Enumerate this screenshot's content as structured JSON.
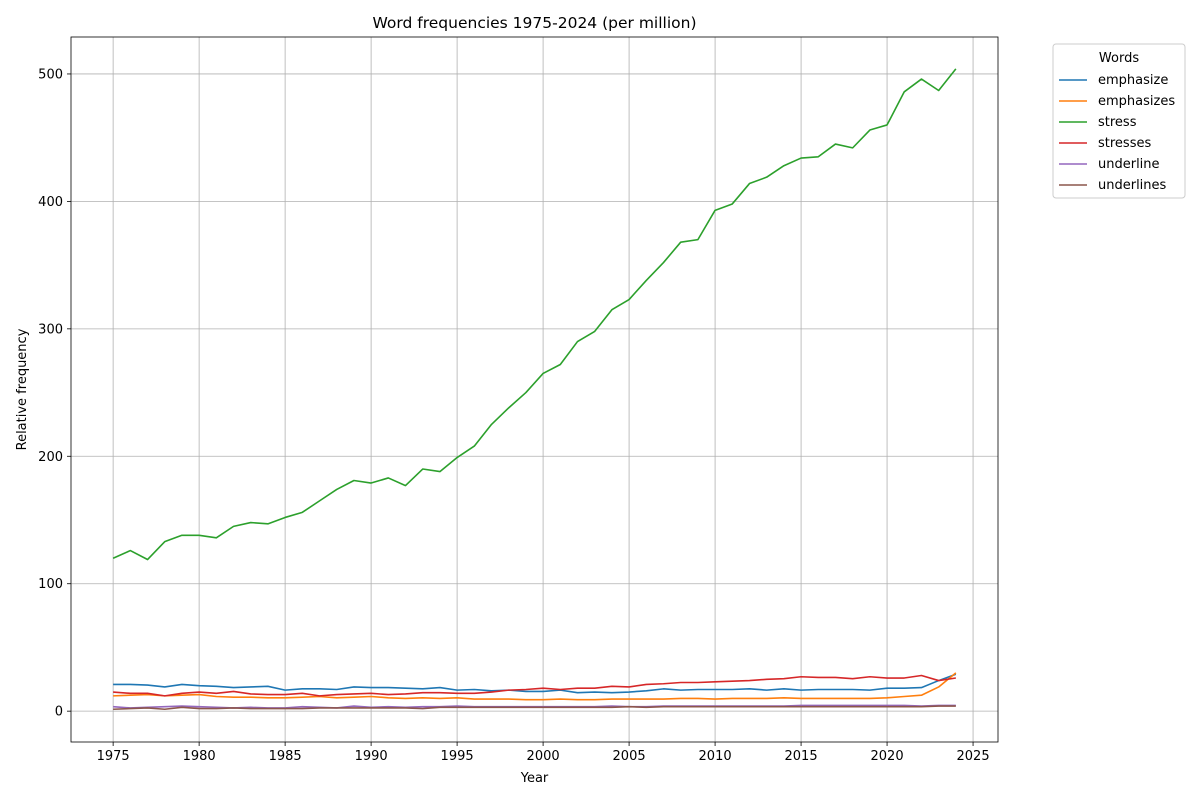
{
  "chart_data": {
    "type": "line",
    "title": "Word frequencies 1975-2024 (per million)",
    "xlabel": "Year",
    "ylabel": "Relative frequency",
    "xlim": [
      1972.55,
      2026.45
    ],
    "ylim": [
      -24.2,
      529.0
    ],
    "xticks": [
      1975,
      1980,
      1985,
      1990,
      1995,
      2000,
      2005,
      2010,
      2015,
      2020,
      2025
    ],
    "yticks": [
      0,
      100,
      200,
      300,
      400,
      500
    ],
    "grid": true,
    "legend": {
      "title": "Words",
      "placement": "outside-top-right"
    },
    "x": [
      1975,
      1976,
      1977,
      1978,
      1979,
      1980,
      1981,
      1982,
      1983,
      1984,
      1985,
      1986,
      1987,
      1988,
      1989,
      1990,
      1991,
      1992,
      1993,
      1994,
      1995,
      1996,
      1997,
      1998,
      1999,
      2000,
      2001,
      2002,
      2003,
      2004,
      2005,
      2006,
      2007,
      2008,
      2009,
      2010,
      2011,
      2012,
      2013,
      2014,
      2015,
      2016,
      2017,
      2018,
      2019,
      2020,
      2021,
      2022,
      2023,
      2024
    ],
    "series": [
      {
        "name": "emphasize",
        "color": "#1f77b4",
        "values": [
          21,
          21,
          20.5,
          19,
          21,
          20,
          19.5,
          18.5,
          19,
          19.5,
          16.5,
          17.5,
          17.5,
          17,
          19,
          18.5,
          18.5,
          18,
          17.5,
          18.5,
          16.5,
          17,
          16,
          16.5,
          15.5,
          15.5,
          16.5,
          14.5,
          15,
          14.5,
          15,
          16,
          17.5,
          16.5,
          17,
          17,
          17,
          17.5,
          16.5,
          17.5,
          16.5,
          17,
          17,
          17,
          16.5,
          18,
          18,
          18.5,
          24,
          29
        ]
      },
      {
        "name": "emphasizes",
        "color": "#ff7f0e",
        "values": [
          12,
          12.5,
          13,
          12,
          12.5,
          13,
          11.5,
          11,
          11,
          10.5,
          10.5,
          11,
          11.5,
          10.5,
          11,
          11.5,
          10.5,
          10,
          10.5,
          10,
          10.5,
          9.5,
          9.5,
          9.5,
          9,
          9,
          9.5,
          9,
          9,
          9.5,
          9.5,
          9.5,
          9.5,
          10,
          10,
          9.5,
          10,
          10,
          10,
          10.5,
          10,
          10,
          10,
          10,
          10,
          10.5,
          11.5,
          12.5,
          19,
          30
        ]
      },
      {
        "name": "stress",
        "color": "#2ca02c",
        "values": [
          120,
          126,
          119,
          133,
          138,
          138,
          136,
          145,
          148,
          147,
          152,
          156,
          165,
          174,
          181,
          179,
          183,
          177,
          190,
          188,
          199,
          208,
          225,
          238,
          250,
          265,
          272,
          290,
          298,
          315,
          323,
          338,
          352,
          368,
          370,
          393,
          398,
          414,
          419,
          428,
          434,
          435,
          445,
          442,
          456,
          460,
          486,
          496,
          487,
          504
        ]
      },
      {
        "name": "stresses",
        "color": "#d62728",
        "values": [
          15,
          14,
          14,
          12,
          14,
          15,
          14,
          15.5,
          13.5,
          13,
          13,
          14,
          12,
          13,
          13.5,
          14,
          13,
          13.5,
          14.5,
          14.5,
          14,
          14,
          15,
          16.5,
          17,
          18,
          17,
          18,
          18,
          19.5,
          19,
          21,
          21.5,
          22.5,
          22.5,
          23,
          23.5,
          24,
          25,
          25.5,
          27,
          26.5,
          26.5,
          25.5,
          27,
          26,
          26,
          28,
          24,
          26
        ]
      },
      {
        "name": "underline",
        "color": "#9467bd",
        "values": [
          3.5,
          2.5,
          3,
          3.5,
          4,
          3.5,
          3,
          2.5,
          3,
          2.5,
          2.5,
          3.5,
          3,
          2.5,
          4,
          3,
          3.5,
          3,
          3.5,
          3.5,
          4,
          3.5,
          3.5,
          3.5,
          3.5,
          3.5,
          3.5,
          3.5,
          3.5,
          4,
          3.5,
          3.5,
          4,
          4,
          4,
          4,
          4,
          4,
          4,
          4,
          4.5,
          4.5,
          4.5,
          4.5,
          4.5,
          4.5,
          4.5,
          4,
          4.5,
          4.5
        ]
      },
      {
        "name": "underlines",
        "color": "#8c564b",
        "values": [
          1.5,
          2,
          2.5,
          1.5,
          3,
          2,
          2,
          2.5,
          2,
          2,
          2,
          2,
          2.5,
          2.5,
          2.5,
          2.5,
          2.5,
          2.5,
          2,
          3,
          3,
          3,
          3,
          3,
          3,
          3,
          3,
          3,
          3,
          3,
          3.5,
          3,
          3.5,
          3.5,
          3.5,
          3.5,
          3.5,
          3.5,
          3.5,
          3.5,
          3.5,
          3.5,
          3.5,
          3.5,
          3.5,
          3.5,
          3.5,
          3.5,
          4,
          4
        ]
      }
    ]
  }
}
